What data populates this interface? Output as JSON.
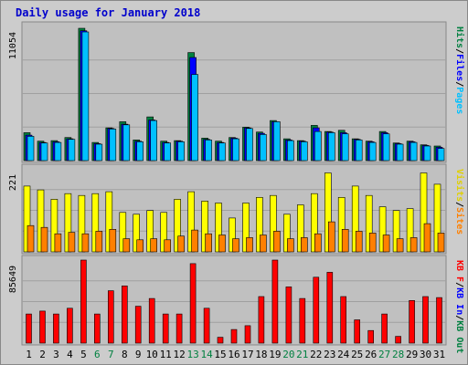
{
  "chart_data": {
    "type": "bar",
    "title": "Daily usage for January 2018",
    "categories": [
      "1",
      "2",
      "3",
      "4",
      "5",
      "6",
      "7",
      "8",
      "9",
      "10",
      "11",
      "12",
      "13",
      "14",
      "15",
      "16",
      "17",
      "18",
      "19",
      "20",
      "21",
      "22",
      "23",
      "24",
      "25",
      "26",
      "27",
      "28",
      "29",
      "30",
      "31"
    ],
    "weekend_days": [
      "6",
      "7",
      "13",
      "14",
      "20",
      "21",
      "27",
      "28"
    ],
    "panels": [
      {
        "id": "top",
        "max_label": "11054",
        "ymax": 11054,
        "side_labels": [
          {
            "text": "Hits",
            "color": "#008040"
          },
          {
            "text": "/",
            "color": "#000000"
          },
          {
            "text": "Files",
            "color": "#0000ff"
          },
          {
            "text": "/",
            "color": "#000000"
          },
          {
            "text": "Pages",
            "color": "#00c0ff"
          }
        ],
        "series": [
          {
            "name": "Hits",
            "color": "#008040",
            "values": [
              2300,
              1600,
              1650,
              1900,
              10900,
              1500,
              2700,
              3200,
              1700,
              3600,
              1600,
              1650,
              8900,
              1850,
              1600,
              1900,
              2750,
              2350,
              3300,
              1800,
              1650,
              2900,
              2400,
              2500,
              1800,
              1600,
              2400,
              1450,
              1600,
              1300,
              1200
            ]
          },
          {
            "name": "Files",
            "color": "#0000ff",
            "values": [
              2100,
              1500,
              1550,
              1800,
              10700,
              1400,
              2650,
              3000,
              1600,
              3350,
              1500,
              1600,
              8500,
              1750,
              1500,
              1850,
              2700,
              2250,
              3200,
              1700,
              1600,
              2700,
              2350,
              2300,
              1750,
              1550,
              2300,
              1400,
              1550,
              1250,
              1100
            ]
          },
          {
            "name": "Pages",
            "color": "#00c0ff",
            "values": [
              2000,
              1450,
              1500,
              1750,
              10600,
              1350,
              2600,
              2950,
              1550,
              3300,
              1450,
              1550,
              7100,
              1700,
              1450,
              1800,
              2650,
              2150,
              3200,
              1650,
              1550,
              2400,
              2300,
              2200,
              1700,
              1500,
              2200,
              1350,
              1500,
              1200,
              1000
            ]
          }
        ]
      },
      {
        "id": "mid",
        "max_label": "221",
        "ymax": 221,
        "side_labels": [
          {
            "text": "Visits",
            "color": "#e0d000"
          },
          {
            "text": "/",
            "color": "#000000"
          },
          {
            "text": "Sites",
            "color": "#ff8000"
          }
        ],
        "series": [
          {
            "name": "Visits",
            "color": "#ffff00",
            "values": [
              175,
              165,
              140,
              155,
              150,
              155,
              160,
              105,
              100,
              110,
              105,
              140,
              160,
              135,
              130,
              90,
              130,
              145,
              150,
              100,
              125,
              155,
              210,
              145,
              175,
              150,
              120,
              110,
              115,
              210,
              180
            ]
          },
          {
            "name": "Sites",
            "color": "#ff8000",
            "values": [
              70,
              65,
              48,
              52,
              48,
              55,
              60,
              35,
              32,
              35,
              32,
              42,
              58,
              48,
              45,
              35,
              38,
              45,
              55,
              35,
              38,
              48,
              80,
              60,
              55,
              50,
              45,
              35,
              38,
              75,
              50
            ]
          }
        ]
      },
      {
        "id": "bottom",
        "max_label": "85649",
        "ymax": 85649,
        "side_labels": [
          {
            "text": "KB F",
            "color": "#ff0000"
          },
          {
            "text": "/",
            "color": "#000000"
          },
          {
            "text": "KB In",
            "color": "#0000ff"
          },
          {
            "text": "/",
            "color": "#000000"
          },
          {
            "text": "KB Out",
            "color": "#008040"
          }
        ],
        "series": [
          {
            "name": "KB F",
            "color": "#ff0000",
            "values": [
              30000,
              33000,
              30000,
              36000,
              85649,
              30000,
              54000,
              59000,
              38000,
              46000,
              30000,
              30000,
              82000,
              36000,
              6000,
              14000,
              18000,
              48000,
              85649,
              58000,
              46000,
              68000,
              73000,
              48000,
              24000,
              13000,
              30000,
              7000,
              44000,
              48000,
              47000
            ]
          }
        ]
      }
    ]
  }
}
